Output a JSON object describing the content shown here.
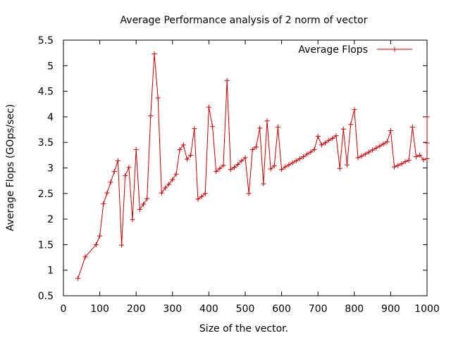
{
  "chart_data": {
    "type": "line",
    "title": "Average Performance analysis of 2 norm of vector",
    "xlabel": "Size of the vector.",
    "ylabel": "Average Flops (GOps/sec)",
    "xlim": [
      0,
      1000
    ],
    "ylim": [
      0.5,
      5.5
    ],
    "x_ticks": [
      "0",
      "100",
      "200",
      "300",
      "400",
      "500",
      "600",
      "700",
      "800",
      "900",
      "1000"
    ],
    "y_ticks": [
      "0.5",
      "1",
      "1.5",
      "2",
      "2.5",
      "3",
      "3.5",
      "4",
      "4.5",
      "5",
      "5.5"
    ],
    "grid": false,
    "legend_position": "top-right",
    "colors": {
      "series": "#cc0000",
      "axes": "#000000"
    },
    "series": [
      {
        "name": "Average Flops",
        "points": [
          [
            40,
            0.84
          ],
          [
            60,
            1.26
          ],
          [
            90,
            1.5
          ],
          [
            100,
            1.67
          ],
          [
            110,
            2.3
          ],
          [
            120,
            2.51
          ],
          [
            130,
            2.72
          ],
          [
            140,
            2.93
          ],
          [
            150,
            3.14
          ],
          [
            160,
            1.49
          ],
          [
            170,
            2.85
          ],
          [
            180,
            3.01
          ],
          [
            190,
            1.99
          ],
          [
            200,
            3.36
          ],
          [
            210,
            2.19
          ],
          [
            220,
            2.29
          ],
          [
            230,
            2.4
          ],
          [
            240,
            4.02
          ],
          [
            250,
            5.23
          ],
          [
            260,
            4.37
          ],
          [
            270,
            2.51
          ],
          [
            280,
            2.61
          ],
          [
            290,
            2.68
          ],
          [
            300,
            2.77
          ],
          [
            310,
            2.88
          ],
          [
            320,
            3.36
          ],
          [
            330,
            3.45
          ],
          [
            340,
            3.17
          ],
          [
            350,
            3.25
          ],
          [
            360,
            3.77
          ],
          [
            370,
            2.39
          ],
          [
            380,
            2.44
          ],
          [
            390,
            2.5
          ],
          [
            400,
            4.19
          ],
          [
            410,
            3.81
          ],
          [
            420,
            2.93
          ],
          [
            430,
            2.99
          ],
          [
            440,
            3.05
          ],
          [
            450,
            4.71
          ],
          [
            460,
            2.97
          ],
          [
            470,
            3.01
          ],
          [
            480,
            3.07
          ],
          [
            490,
            3.14
          ],
          [
            500,
            3.2
          ],
          [
            510,
            2.5
          ],
          [
            520,
            3.36
          ],
          [
            530,
            3.41
          ],
          [
            540,
            3.78
          ],
          [
            550,
            2.69
          ],
          [
            560,
            3.92
          ],
          [
            570,
            2.98
          ],
          [
            580,
            3.04
          ],
          [
            590,
            3.8
          ],
          [
            600,
            2.97
          ],
          [
            610,
            3.02
          ],
          [
            620,
            3.06
          ],
          [
            630,
            3.1
          ],
          [
            640,
            3.14
          ],
          [
            650,
            3.18
          ],
          [
            660,
            3.22
          ],
          [
            670,
            3.27
          ],
          [
            680,
            3.31
          ],
          [
            690,
            3.36
          ],
          [
            700,
            3.62
          ],
          [
            710,
            3.45
          ],
          [
            720,
            3.49
          ],
          [
            730,
            3.54
          ],
          [
            740,
            3.58
          ],
          [
            750,
            3.63
          ],
          [
            760,
            2.99
          ],
          [
            770,
            3.76
          ],
          [
            780,
            3.06
          ],
          [
            790,
            3.85
          ],
          [
            800,
            4.14
          ],
          [
            810,
            3.2
          ],
          [
            820,
            3.23
          ],
          [
            830,
            3.27
          ],
          [
            840,
            3.31
          ],
          [
            850,
            3.35
          ],
          [
            860,
            3.39
          ],
          [
            870,
            3.43
          ],
          [
            880,
            3.47
          ],
          [
            890,
            3.51
          ],
          [
            900,
            3.73
          ],
          [
            910,
            3.02
          ],
          [
            920,
            3.05
          ],
          [
            930,
            3.08
          ],
          [
            940,
            3.12
          ],
          [
            950,
            3.15
          ],
          [
            960,
            3.8
          ],
          [
            970,
            3.22
          ],
          [
            980,
            3.25
          ],
          [
            990,
            3.16
          ],
          [
            1000,
            3.18
          ],
          [
            1000,
            3.49
          ],
          [
            1000,
            4.0
          ]
        ]
      }
    ]
  }
}
